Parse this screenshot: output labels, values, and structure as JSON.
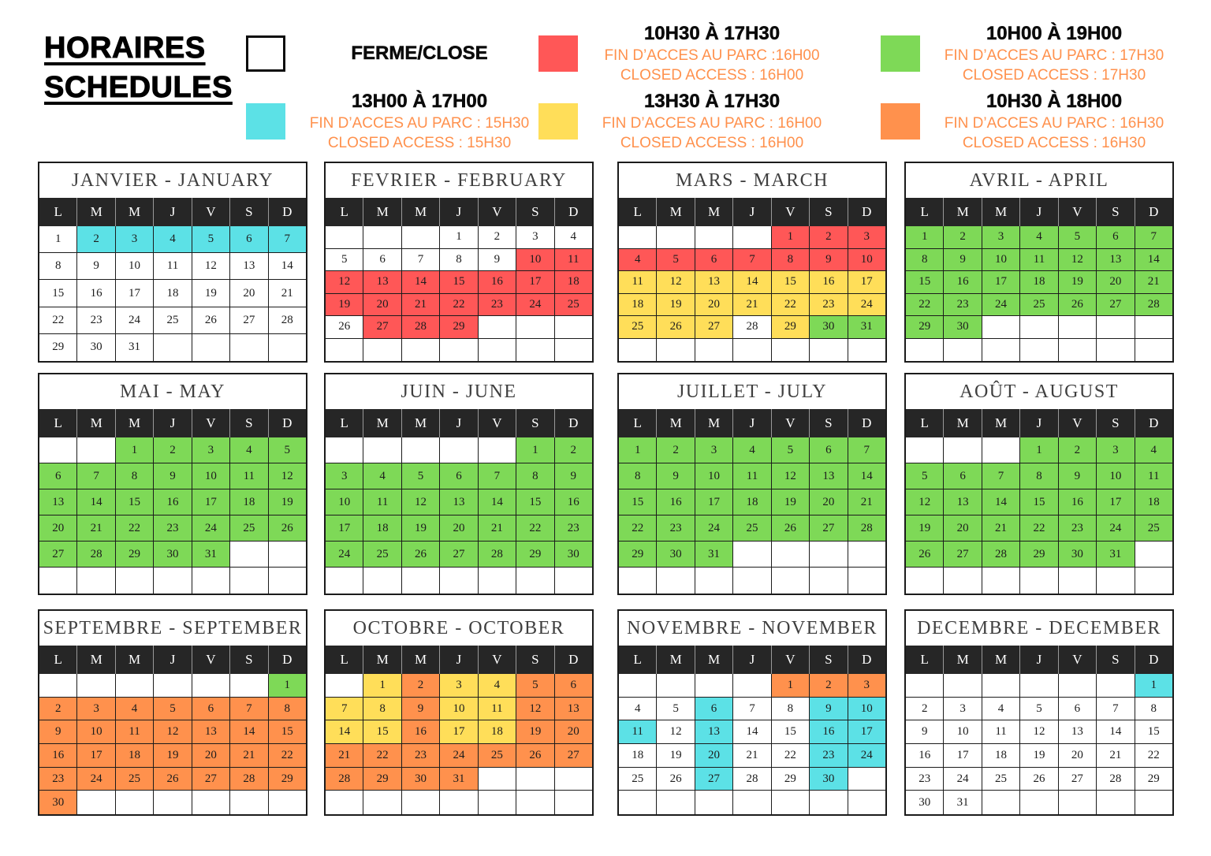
{
  "page": {
    "title_line1": "HORAIRES",
    "title_line2": "SCHEDULES"
  },
  "colors": {
    "white": "#FFFFFF",
    "cyan": "#5CE1E6",
    "red": "#FF5757",
    "yellow": "#FFDE59",
    "green": "#7ED957",
    "orange": "#FF914D",
    "header_bg": "#262626",
    "legend_subtext": "#FF914D",
    "month_title_text": "#3F3F3F"
  },
  "color_keys": {
    "w": "white",
    "c": "cyan",
    "r": "red",
    "y": "yellow",
    "g": "green",
    "o": "orange"
  },
  "legend": [
    {
      "id": "closed",
      "swatch": "white",
      "heading": "FERME/CLOSE",
      "lines": []
    },
    {
      "id": "cyan",
      "swatch": "cyan",
      "heading": "13H00 À 17H00",
      "lines": [
        "FIN D’ACCES AU PARC : 15H30",
        "CLOSED ACCESS : 15H30"
      ]
    },
    {
      "id": "red",
      "swatch": "red",
      "heading": "10H30 À 17H30",
      "lines": [
        "FIN D’ACCES AU PARC :16H00",
        "CLOSED ACCESS : 16H00"
      ]
    },
    {
      "id": "yellow",
      "swatch": "yellow",
      "heading": "13H30 À 17H30",
      "lines": [
        "FIN D’ACCES AU PARC : 16H00",
        "CLOSED ACCESS : 16H00"
      ]
    },
    {
      "id": "green",
      "swatch": "green",
      "heading": "10H00 À 19H00",
      "lines": [
        "FIN D’ACCES AU PARC : 17H30",
        "CLOSED ACCESS : 17H30"
      ]
    },
    {
      "id": "orange",
      "swatch": "orange",
      "heading": "10H30 À 18H00",
      "lines": [
        "FIN D’ACCES AU PARC : 16H30",
        "CLOSED ACCESS : 16H30"
      ]
    }
  ],
  "day_headers": [
    "L",
    "M",
    "M",
    "J",
    "V",
    "S",
    "D"
  ],
  "months": [
    {
      "title": "JANVIER - JANUARY",
      "rows": [
        [
          "1:w",
          "2:c",
          "3:c",
          "4:c",
          "5:c",
          "6:c",
          "7:c"
        ],
        [
          "8:w",
          "9:w",
          "10:w",
          "11:w",
          "12:w",
          "13:w",
          "14:w"
        ],
        [
          "15:w",
          "16:w",
          "17:w",
          "18:w",
          "19:w",
          "20:w",
          "21:w"
        ],
        [
          "22:w",
          "23:w",
          "24:w",
          "25:w",
          "26:w",
          "27:w",
          "28:w"
        ],
        [
          "29:w",
          "30:w",
          "31:w",
          "",
          "",
          "",
          ""
        ]
      ]
    },
    {
      "title": "FEVRIER - FEBRUARY",
      "rows": [
        [
          "",
          "",
          "",
          "1:w",
          "2:w",
          "3:w",
          "4:w"
        ],
        [
          "5:w",
          "6:w",
          "7:w",
          "8:w",
          "9:w",
          "10:r",
          "11:r"
        ],
        [
          "12:r",
          "13:r",
          "14:r",
          "15:r",
          "16:r",
          "17:r",
          "18:r"
        ],
        [
          "19:r",
          "20:r",
          "21:r",
          "22:r",
          "23:r",
          "24:r",
          "25:r"
        ],
        [
          "26:w",
          "27:r",
          "28:r",
          "29:r",
          "",
          "",
          ""
        ],
        [
          "",
          "",
          "",
          "",
          "",
          "",
          ""
        ]
      ]
    },
    {
      "title": "MARS - MARCH",
      "rows": [
        [
          "",
          "",
          "",
          "",
          "1:r",
          "2:r",
          "3:r"
        ],
        [
          "4:r",
          "5:r",
          "6:r",
          "7:r",
          "8:r",
          "9:r",
          "10:r"
        ],
        [
          "11:y",
          "12:y",
          "13:y",
          "14:y",
          "15:y",
          "16:y",
          "17:y"
        ],
        [
          "18:y",
          "19:y",
          "20:y",
          "21:y",
          "22:y",
          "23:y",
          "24:y"
        ],
        [
          "25:y",
          "26:y",
          "27:y",
          "28:w",
          "29:y",
          "30:g",
          "31:g"
        ],
        [
          "",
          "",
          "",
          "",
          "",
          "",
          ""
        ]
      ]
    },
    {
      "title": "AVRIL - APRIL",
      "rows": [
        [
          "1:g",
          "2:g",
          "3:g",
          "4:g",
          "5:g",
          "6:g",
          "7:g"
        ],
        [
          "8:g",
          "9:g",
          "10:g",
          "11:g",
          "12:g",
          "13:g",
          "14:g"
        ],
        [
          "15:g",
          "16:g",
          "17:g",
          "18:g",
          "19:g",
          "20:g",
          "21:g"
        ],
        [
          "22:g",
          "23:g",
          "24:g",
          "25:g",
          "26:g",
          "27:g",
          "28:g"
        ],
        [
          "29:g",
          "30:g",
          "",
          "",
          "",
          "",
          ""
        ],
        [
          "",
          "",
          "",
          "",
          "",
          "",
          ""
        ]
      ]
    },
    {
      "title": "MAI - MAY",
      "rows": [
        [
          "",
          "",
          "1:g",
          "2:g",
          "3:g",
          "4:g",
          "5:g"
        ],
        [
          "6:g",
          "7:g",
          "8:g",
          "9:g",
          "10:g",
          "11:g",
          "12:g"
        ],
        [
          "13:g",
          "14:g",
          "15:g",
          "16:g",
          "17:g",
          "18:g",
          "19:g"
        ],
        [
          "20:g",
          "21:g",
          "22:g",
          "23:g",
          "24:g",
          "25:g",
          "26:g"
        ],
        [
          "27:g",
          "28:g",
          "29:g",
          "30:g",
          "31:g",
          "",
          ""
        ],
        [
          "",
          "",
          "",
          "",
          "",
          "",
          ""
        ]
      ]
    },
    {
      "title": "JUIN - JUNE",
      "rows": [
        [
          "",
          "",
          "",
          "",
          "",
          "1:g",
          "2:g"
        ],
        [
          "3:g",
          "4:g",
          "5:g",
          "6:g",
          "7:g",
          "8:g",
          "9:g"
        ],
        [
          "10:g",
          "11:g",
          "12:g",
          "13:g",
          "14:g",
          "15:g",
          "16:g"
        ],
        [
          "17:g",
          "18:g",
          "19:g",
          "20:g",
          "21:g",
          "22:g",
          "23:g"
        ],
        [
          "24:g",
          "25:g",
          "26:g",
          "27:g",
          "28:g",
          "29:g",
          "30:g"
        ],
        [
          "",
          "",
          "",
          "",
          "",
          "",
          ""
        ]
      ]
    },
    {
      "title": "JUILLET - JULY",
      "rows": [
        [
          "1:g",
          "2:g",
          "3:g",
          "4:g",
          "5:g",
          "6:g",
          "7:g"
        ],
        [
          "8:g",
          "9:g",
          "10:g",
          "11:g",
          "12:g",
          "13:g",
          "14:g"
        ],
        [
          "15:g",
          "16:g",
          "17:g",
          "18:g",
          "19:g",
          "20:g",
          "21:g"
        ],
        [
          "22:g",
          "23:g",
          "24:g",
          "25:g",
          "26:g",
          "27:g",
          "28:g"
        ],
        [
          "29:g",
          "30:g",
          "31:g",
          "",
          "",
          "",
          ""
        ],
        [
          "",
          "",
          "",
          "",
          "",
          "",
          ""
        ]
      ]
    },
    {
      "title": "AOÛT - AUGUST",
      "rows": [
        [
          "",
          "",
          "",
          "1:g",
          "2:g",
          "3:g",
          "4:g"
        ],
        [
          "5:g",
          "6:g",
          "7:g",
          "8:g",
          "9:g",
          "10:g",
          "11:g"
        ],
        [
          "12:g",
          "13:g",
          "14:g",
          "15:g",
          "16:g",
          "17:g",
          "18:g"
        ],
        [
          "19:g",
          "20:g",
          "21:g",
          "22:g",
          "23:g",
          "24:g",
          "25:g"
        ],
        [
          "26:g",
          "27:g",
          "28:g",
          "29:g",
          "30:g",
          "31:g",
          ""
        ],
        [
          "",
          "",
          "",
          "",
          "",
          "",
          ""
        ]
      ]
    },
    {
      "title": "SEPTEMBRE - SEPTEMBER",
      "rows": [
        [
          "",
          "",
          "",
          "",
          "",
          "",
          "1:g"
        ],
        [
          "2:o",
          "3:o",
          "4:o",
          "5:o",
          "6:o",
          "7:o",
          "8:o"
        ],
        [
          "9:o",
          "10:o",
          "11:o",
          "12:o",
          "13:o",
          "14:o",
          "15:o"
        ],
        [
          "16:o",
          "17:o",
          "18:o",
          "19:o",
          "20:o",
          "21:o",
          "22:o"
        ],
        [
          "23:o",
          "24:o",
          "25:o",
          "26:o",
          "27:o",
          "28:o",
          "29:o"
        ],
        [
          "30:o",
          "",
          "",
          "",
          "",
          "",
          ""
        ]
      ]
    },
    {
      "title": "OCTOBRE - OCTOBER",
      "rows": [
        [
          "",
          "1:y",
          "2:o",
          "3:y",
          "4:y",
          "5:o",
          "6:o"
        ],
        [
          "7:y",
          "8:y",
          "9:o",
          "10:y",
          "11:y",
          "12:o",
          "13:o"
        ],
        [
          "14:y",
          "15:y",
          "16:o",
          "17:y",
          "18:y",
          "19:o",
          "20:o"
        ],
        [
          "21:o",
          "22:o",
          "23:o",
          "24:o",
          "25:o",
          "26:o",
          "27:o"
        ],
        [
          "28:o",
          "29:o",
          "30:o",
          "31:o",
          "",
          "",
          ""
        ],
        [
          "",
          "",
          "",
          "",
          "",
          "",
          ""
        ]
      ]
    },
    {
      "title": "NOVEMBRE - NOVEMBER",
      "rows": [
        [
          "",
          "",
          "",
          "",
          "1:o",
          "2:o",
          "3:o"
        ],
        [
          "4:w",
          "5:w",
          "6:c",
          "7:w",
          "8:w",
          "9:c",
          "10:c"
        ],
        [
          "11:c",
          "12:w",
          "13:c",
          "14:w",
          "15:w",
          "16:c",
          "17:c"
        ],
        [
          "18:w",
          "19:w",
          "20:c",
          "21:w",
          "22:w",
          "23:c",
          "24:c"
        ],
        [
          "25:w",
          "26:w",
          "27:c",
          "28:w",
          "29:w",
          "30:c",
          ""
        ],
        [
          "",
          "",
          "",
          "",
          "",
          "",
          ""
        ]
      ]
    },
    {
      "title": "DECEMBRE - DECEMBER",
      "rows": [
        [
          "",
          "",
          "",
          "",
          "",
          "",
          "1:c"
        ],
        [
          "2:w",
          "3:w",
          "4:w",
          "5:w",
          "6:w",
          "7:w",
          "8:w"
        ],
        [
          "9:w",
          "10:w",
          "11:w",
          "12:w",
          "13:w",
          "14:w",
          "15:w"
        ],
        [
          "16:w",
          "17:w",
          "18:w",
          "19:w",
          "20:w",
          "21:w",
          "22:w"
        ],
        [
          "23:w",
          "24:w",
          "25:w",
          "26:w",
          "27:w",
          "28:w",
          "29:w"
        ],
        [
          "30:w",
          "31:w",
          "",
          "",
          "",
          "",
          ""
        ]
      ]
    }
  ]
}
